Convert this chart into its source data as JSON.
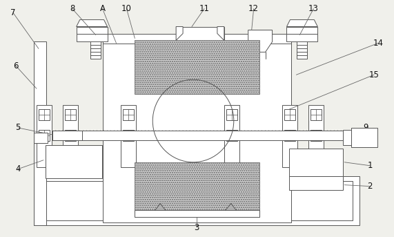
{
  "bg_color": "#f0f0eb",
  "line_color": "#555555",
  "fill_white": "#ffffff",
  "fill_light": "#e0e0e0",
  "figsize": [
    5.71,
    3.43
  ],
  "dpi": 100,
  "label_fs": 8.5,
  "label_color": "#111111",
  "labels_data": {
    "7": [
      18,
      18,
      55,
      70
    ],
    "8": [
      104,
      12,
      138,
      50
    ],
    "A": [
      148,
      12,
      168,
      62
    ],
    "10": [
      183,
      12,
      195,
      55
    ],
    "11": [
      296,
      12,
      278,
      38
    ],
    "12": [
      368,
      12,
      365,
      43
    ],
    "13": [
      455,
      12,
      435,
      50
    ],
    "6": [
      22,
      95,
      52,
      128
    ],
    "14": [
      549,
      62,
      430,
      108
    ],
    "15": [
      543,
      108,
      420,
      158
    ],
    "9": [
      531,
      185,
      507,
      198
    ],
    "5": [
      25,
      185,
      80,
      196
    ],
    "4": [
      25,
      245,
      62,
      232
    ],
    "1": [
      537,
      240,
      500,
      235
    ],
    "2": [
      537,
      270,
      500,
      268
    ],
    "3": [
      285,
      330,
      285,
      312
    ]
  }
}
